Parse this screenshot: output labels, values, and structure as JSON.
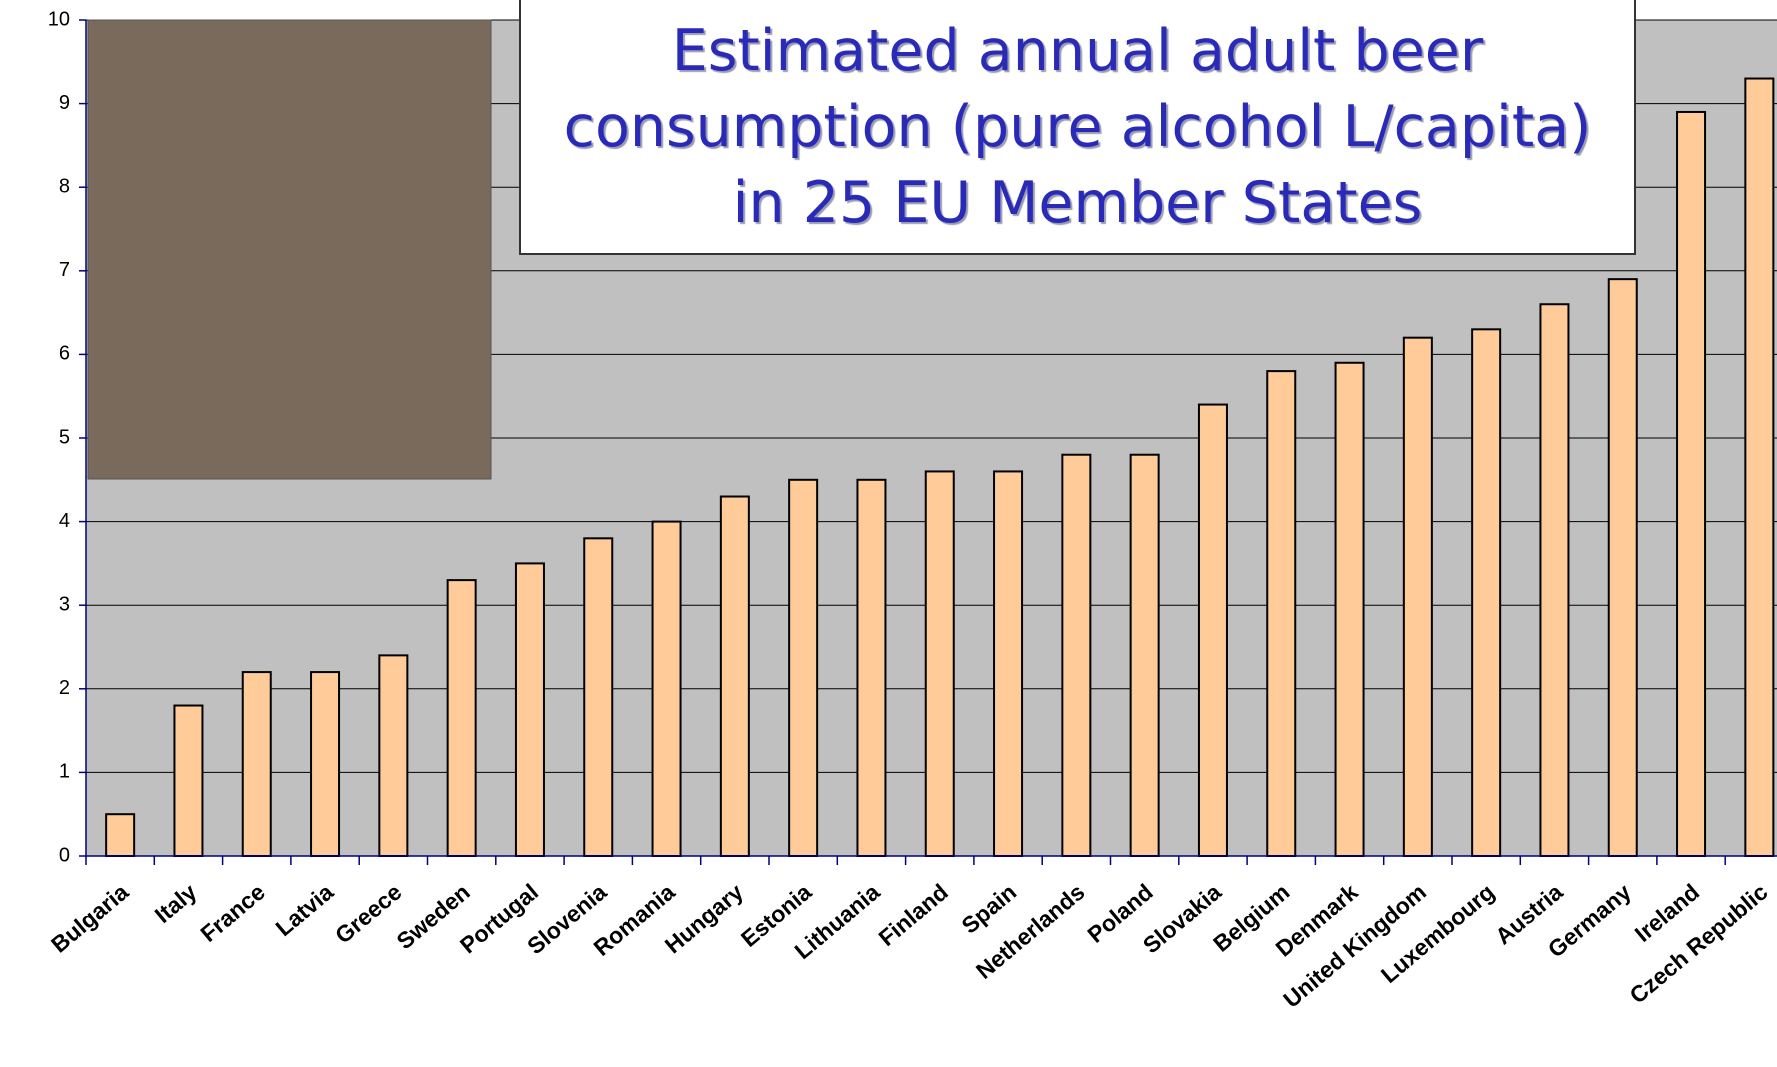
{
  "chart_data": {
    "type": "bar",
    "title": "Estimated annual adult beer consumption (pure alcohol L/capita) in 25 EU Member States",
    "categories": [
      "Bulgaria",
      "Italy",
      "France",
      "Latvia",
      "Greece",
      "Sweden",
      "Portugal",
      "Slovenia",
      "Romania",
      "Hungary",
      "Estonia",
      "Lithuania",
      "Finland",
      "Spain",
      "Netherlands",
      "Poland",
      "Slovakia",
      "Belgium",
      "Denmark",
      "United Kingdom",
      "Luxembourg",
      "Austria",
      "Germany",
      "Ireland",
      "Czech Republic"
    ],
    "values": [
      0.5,
      1.8,
      2.2,
      2.2,
      2.4,
      3.3,
      3.5,
      3.8,
      4.0,
      4.3,
      4.5,
      4.5,
      4.6,
      4.6,
      4.8,
      4.8,
      5.4,
      5.8,
      5.9,
      6.2,
      6.3,
      6.6,
      6.9,
      8.9,
      9.3
    ],
    "color": "#ffcc99",
    "ylim": [
      0,
      10
    ],
    "yticks": [
      0,
      1,
      2,
      3,
      4,
      5,
      6,
      7,
      8,
      9,
      10
    ],
    "grid": true
  }
}
